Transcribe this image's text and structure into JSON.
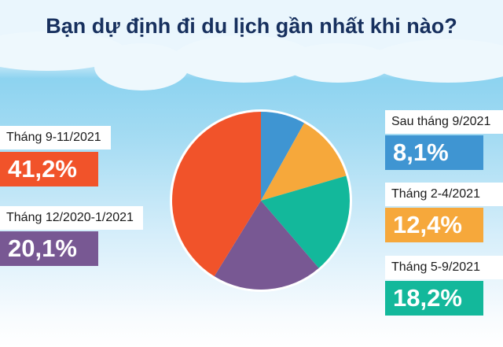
{
  "chart_data": {
    "type": "pie",
    "title": "Bạn dự định đi du lịch gần nhất khi nào?",
    "slices": [
      {
        "label": "Sau tháng 9/2021",
        "value": 8.1,
        "display": "8,1%",
        "color": "#3f95d2"
      },
      {
        "label": "Tháng 2-4/2021",
        "value": 12.4,
        "display": "12,4%",
        "color": "#f6a83b"
      },
      {
        "label": "Tháng 5-9/2021",
        "value": 18.2,
        "display": "18,2%",
        "color": "#13b89b"
      },
      {
        "label": "Tháng 12/2020-1/2021",
        "value": 20.1,
        "display": "20,1%",
        "color": "#785893"
      },
      {
        "label": "Tháng 9-11/2021",
        "value": 41.2,
        "display": "41,2%",
        "color": "#f1532a"
      }
    ]
  }
}
